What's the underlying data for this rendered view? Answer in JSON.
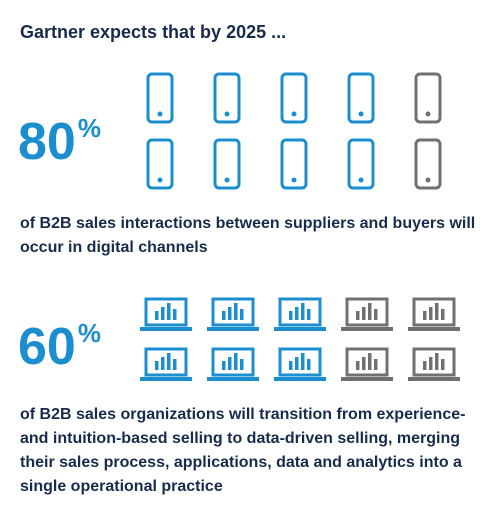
{
  "header": {
    "title": "Gartner expects that by 2025 ..."
  },
  "stats": [
    {
      "value": 80,
      "unit": "%",
      "icon": "phone",
      "description": "of B2B sales interactions between suppliers and buyers will occur in digital channels"
    },
    {
      "value": 60,
      "unit": "%",
      "icon": "laptop",
      "description": "of B2B sales organizations will transition from experience- and intuition-based selling to data-driven selling, merging their sales process, applications, data and analytics into a single operational practice"
    }
  ]
}
